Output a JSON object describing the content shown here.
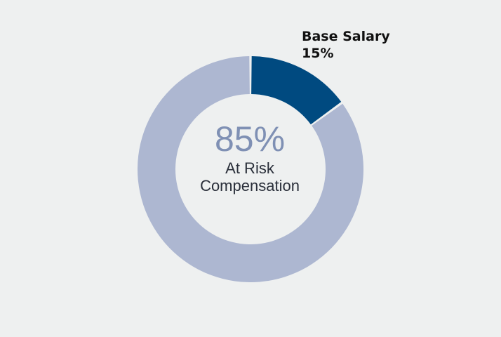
{
  "chart_data": {
    "type": "pie",
    "categories": [
      "Base Salary",
      "At Risk Compensation"
    ],
    "values": [
      15,
      85
    ],
    "colors": [
      "#004a80",
      "#adb7d1"
    ],
    "center_label": {
      "value": "85%",
      "line1": "At Risk",
      "line2": "Compensation"
    },
    "callout": {
      "name": "Base Salary",
      "value": "15%"
    }
  }
}
